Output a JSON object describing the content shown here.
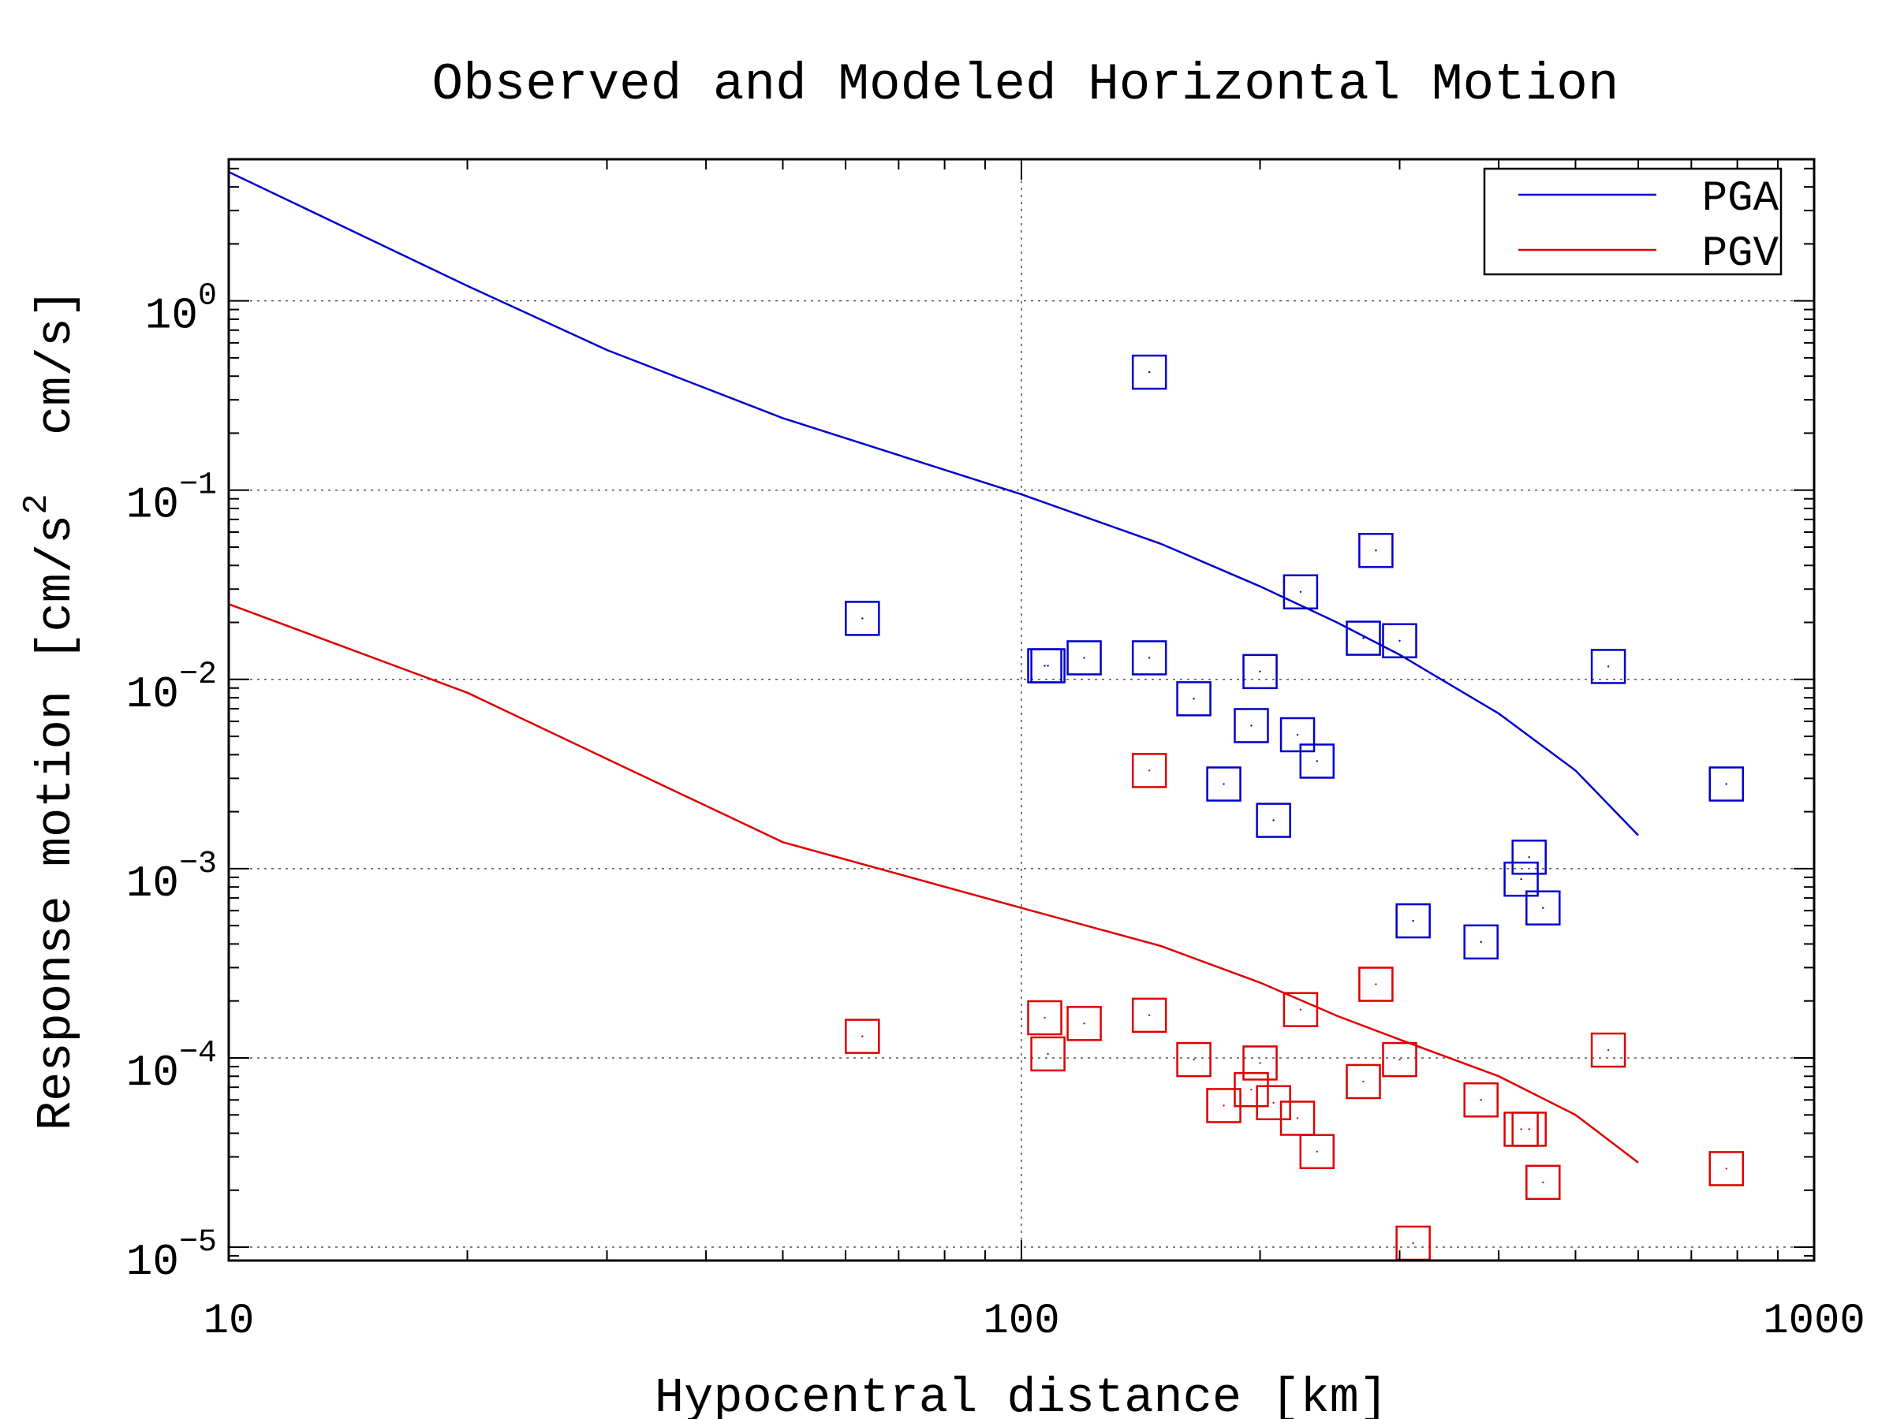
{
  "chart_data": {
    "type": "scatter",
    "title": "Observed and Modeled Horizontal Motion",
    "xlabel": "Hypocentral distance [km]",
    "ylabel_main": "Response motion [cm/s",
    "ylabel_sup": "2",
    "ylabel_tail": "  cm/s]",
    "xscale": "log",
    "yscale": "log",
    "xlim": [
      10,
      1000
    ],
    "ylim": [
      8.5e-06,
      5.6
    ],
    "x_ticks": [
      {
        "value": 10,
        "label": "10"
      },
      {
        "value": 100,
        "label": "100"
      },
      {
        "value": 1000,
        "label": "1000"
      }
    ],
    "y_ticks": [
      {
        "value": 1,
        "base": "10",
        "exp": "0"
      },
      {
        "value": 0.1,
        "base": "10",
        "exp": "−1"
      },
      {
        "value": 0.01,
        "base": "10",
        "exp": "−2"
      },
      {
        "value": 0.001,
        "base": "10",
        "exp": "−3"
      },
      {
        "value": 0.0001,
        "base": "10",
        "exp": "−4"
      },
      {
        "value": 1e-05,
        "base": "10",
        "exp": "−5"
      }
    ],
    "grid": true,
    "legend": {
      "position": "top-right"
    },
    "series": [
      {
        "name": "PGA",
        "color": "#0000cc",
        "kind": "line",
        "x": [
          10,
          20,
          30,
          50,
          100,
          150,
          200,
          250,
          300,
          400,
          500,
          600
        ],
        "y": [
          4.8,
          1.2,
          0.55,
          0.24,
          0.095,
          0.052,
          0.031,
          0.02,
          0.0135,
          0.0066,
          0.0033,
          0.0015
        ]
      },
      {
        "name": "PGV",
        "color": "#dd0000",
        "kind": "line",
        "x": [
          10,
          20,
          30,
          50,
          100,
          150,
          200,
          250,
          300,
          400,
          500,
          600
        ],
        "y": [
          0.025,
          0.0085,
          0.0038,
          0.00138,
          0.00062,
          0.00039,
          0.00025,
          0.000167,
          0.000125,
          8e-05,
          5e-05,
          2.8e-05
        ]
      },
      {
        "color": "#0000cc",
        "kind": "markers",
        "marker": "square",
        "points": [
          [
            63,
            0.021
          ],
          [
            107,
            0.0118
          ],
          [
            108,
            0.0118
          ],
          [
            120,
            0.013
          ],
          [
            145,
            0.42
          ],
          [
            145,
            0.013
          ],
          [
            165,
            0.0079
          ],
          [
            180,
            0.0028
          ],
          [
            195,
            0.0057
          ],
          [
            200,
            0.011
          ],
          [
            208,
            0.0018
          ],
          [
            223,
            0.0051
          ],
          [
            225,
            0.029
          ],
          [
            236,
            0.0037
          ],
          [
            270,
            0.0165
          ],
          [
            280,
            0.048
          ],
          [
            300,
            0.016
          ],
          [
            312,
            0.00053
          ],
          [
            380,
            0.00041
          ],
          [
            427,
            0.00088
          ],
          [
            437,
            0.00115
          ],
          [
            455,
            0.00062
          ],
          [
            550,
            0.0117
          ],
          [
            775,
            0.0028
          ]
        ]
      },
      {
        "color": "#dd0000",
        "kind": "markers",
        "marker": "square",
        "points": [
          [
            63,
            0.00013
          ],
          [
            107,
            0.000163
          ],
          [
            108,
            0.000105
          ],
          [
            120,
            0.000152
          ],
          [
            145,
            0.0033
          ],
          [
            145,
            0.000168
          ],
          [
            165,
            9.8e-05
          ],
          [
            180,
            5.6e-05
          ],
          [
            195,
            6.8e-05
          ],
          [
            200,
            9.4e-05
          ],
          [
            208,
            5.8e-05
          ],
          [
            223,
            4.8e-05
          ],
          [
            225,
            0.00018
          ],
          [
            236,
            3.2e-05
          ],
          [
            270,
            7.5e-05
          ],
          [
            280,
            0.000245
          ],
          [
            300,
            9.8e-05
          ],
          [
            312,
            1.05e-05
          ],
          [
            380,
            6e-05
          ],
          [
            427,
            4.2e-05
          ],
          [
            437,
            4.2e-05
          ],
          [
            455,
            2.2e-05
          ],
          [
            550,
            0.00011
          ],
          [
            775,
            2.6e-05
          ]
        ]
      }
    ]
  }
}
